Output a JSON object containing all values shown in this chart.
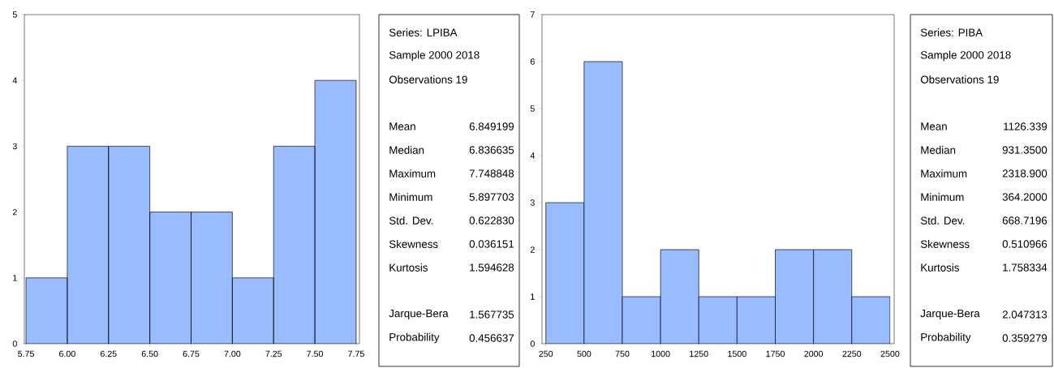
{
  "chart_data": [
    {
      "type": "histogram",
      "bins": [
        5.75,
        6.0,
        6.25,
        6.5,
        6.75,
        7.0,
        7.25,
        7.5,
        7.75
      ],
      "values": [
        1,
        3,
        3,
        2,
        2,
        1,
        3,
        4
      ],
      "color": "#99bbff",
      "xlim": [
        5.74,
        7.77
      ],
      "ylim": [
        0,
        5
      ],
      "xticks": [
        5.75,
        {
          "value": 6.0,
          "label": "6.00"
        },
        6.25,
        {
          "value": 6.5,
          "label": "6.50"
        },
        6.75,
        {
          "value": 7.0,
          "label": "7.00"
        },
        7.25,
        {
          "value": 7.5,
          "label": "7.50"
        },
        7.75
      ],
      "yticks": [
        0,
        1,
        2,
        3,
        4,
        5
      ]
    },
    {
      "type": "other",
      "annotations": [
        "Series: LPIBA",
        "Sample 2000 2018",
        "Observations 19",
        "Mean",
        "6.849199",
        "Median",
        "6.836635",
        "Maximum",
        "7.748848",
        "Minimum",
        "5.897703",
        "Std. Dev.",
        "0.622830",
        "Skewness",
        "0.036151",
        "Kurtosis",
        "1.594628",
        "Jarque-Bera",
        "1.567735",
        "Probability",
        "0.456637"
      ]
    },
    {
      "type": "histogram",
      "bins": [
        250,
        500,
        750,
        1000,
        1250,
        1500,
        1750,
        2000,
        2250,
        2500
      ],
      "values": [
        3,
        6,
        1,
        2,
        1,
        1,
        2,
        2,
        1
      ],
      "color": "#99bbff",
      "xlim": [
        225,
        2527
      ],
      "ylim": [
        0,
        7
      ],
      "xticks": [
        250,
        500,
        750,
        1000,
        1250,
        1500,
        1750,
        2000,
        2250,
        2500
      ],
      "yticks": [
        0,
        1,
        2,
        3,
        4,
        5,
        6,
        7
      ]
    },
    {
      "type": "other",
      "annotations": [
        "Series: PIBA",
        "Sample 2000 2018",
        "Observations 19",
        "Mean",
        "1126.339",
        "Median",
        "931.3500",
        "Maximum",
        "2318.900",
        "Minimum",
        "364.2000",
        "Std. Dev.",
        "668.7196",
        "Skewness",
        "0.510966",
        "Kurtosis",
        "1.758334",
        "Jarque-Bera",
        "2.047313",
        "Probability",
        "0.359279"
      ]
    }
  ]
}
